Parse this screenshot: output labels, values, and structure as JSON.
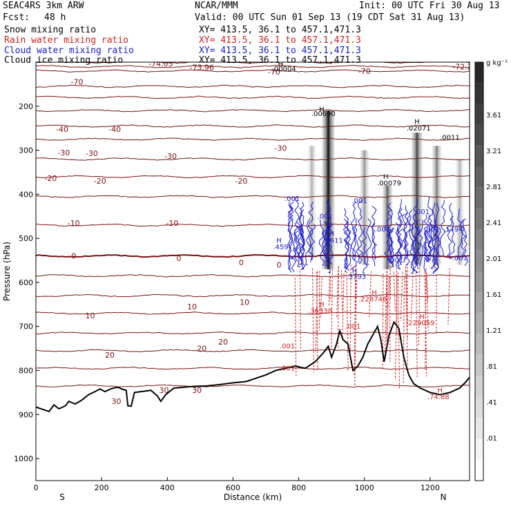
{
  "header": {
    "model": "SEAC4RS  3km ARW",
    "org": "NCAR/MMM",
    "init": "Init: 00 UTC Fri 30 Aug 13",
    "fcst_label": "Fcst:",
    "fcst_value": "48 h",
    "valid": "Valid: 00 UTC Sun 01 Sep 13 (19 CDT Sat 31 Aug 13)"
  },
  "fields": [
    {
      "name": "Snow mixing ratio",
      "xy": "XY= 413.5, 36.1 to 457.1,471.3",
      "color": "#000000"
    },
    {
      "name": "Rain water mixing ratio",
      "xy": "XY= 413.5, 36.1 to 457.1,471.3",
      "color": "#d11f1f"
    },
    {
      "name": "Cloud water mixing ratio",
      "xy": "XY= 413.5, 36.1 to 457.1,471.3",
      "color": "#1a1acc"
    },
    {
      "name": "Cloud ice mixing ratio",
      "xy": "XY= 413.5, 36.1 to 457.1,471.3",
      "color": "#000000"
    }
  ],
  "chart_data": {
    "type": "cross-section",
    "xlabel": "Distance (km)",
    "ylabel": "Pressure (hPa)",
    "xlim": [
      0,
      1320
    ],
    "ylim": [
      1050,
      100
    ],
    "x_ticks": [
      0,
      200,
      400,
      600,
      800,
      1000,
      1200
    ],
    "y_ticks": [
      200,
      300,
      400,
      500,
      600,
      700,
      800,
      900,
      1000
    ],
    "end_labels": {
      "left": "S",
      "right": "N"
    },
    "colorbar": {
      "unit": "g kg⁻¹",
      "labels": [
        "3.61",
        "3.21",
        "2.81",
        "2.41",
        "2.01",
        "1.61",
        "1.21",
        ".81",
        ".41",
        ".01"
      ]
    },
    "temperature_contours": [
      {
        "value": -72.25,
        "p": 100
      },
      {
        "value": -73.96,
        "p": 110
      },
      {
        "value": -70,
        "p": 120
      },
      {
        "value": -60,
        "p": 155
      },
      {
        "value": -50,
        "p": 180
      },
      {
        "value": -40,
        "p": 210
      },
      {
        "value": -30,
        "p": 245
      },
      {
        "value": -25,
        "p": 275
      },
      {
        "value": -20,
        "p": 320
      },
      {
        "value": -15,
        "p": 360
      },
      {
        "value": -10,
        "p": 405
      },
      {
        "value": -5,
        "p": 470
      },
      {
        "value": 0,
        "p": 540
      },
      {
        "value": 5,
        "p": 585
      },
      {
        "value": 10,
        "p": 630
      },
      {
        "value": 15,
        "p": 670
      },
      {
        "value": 20,
        "p": 715
      },
      {
        "value": 25,
        "p": 755
      },
      {
        "value": 30,
        "p": 795
      },
      {
        "value": 35,
        "p": 835
      }
    ],
    "temperature_labels": [
      {
        "text": "-70",
        "x": 125,
        "p": 145
      },
      {
        "text": "-74.03",
        "x": 380,
        "p": 103
      },
      {
        "text": "-73.96",
        "x": 505,
        "p": 112
      },
      {
        "text": "-70",
        "x": 725,
        "p": 122
      },
      {
        "text": "-70",
        "x": 1000,
        "p": 120
      },
      {
        "text": "-72.25",
        "x": 1305,
        "p": 110
      },
      {
        "text": "-40",
        "x": 80,
        "p": 252
      },
      {
        "text": "-40",
        "x": 240,
        "p": 252
      },
      {
        "text": "-30",
        "x": 85,
        "p": 305
      },
      {
        "text": "-30",
        "x": 170,
        "p": 307
      },
      {
        "text": "-30",
        "x": 410,
        "p": 313
      },
      {
        "text": "-30",
        "x": 745,
        "p": 295
      },
      {
        "text": "-20",
        "x": 45,
        "p": 363
      },
      {
        "text": "-20",
        "x": 195,
        "p": 370
      },
      {
        "text": "-20",
        "x": 625,
        "p": 370
      },
      {
        "text": "-10",
        "x": 115,
        "p": 465
      },
      {
        "text": "-10",
        "x": 415,
        "p": 465
      },
      {
        "text": "0",
        "x": 115,
        "p": 540
      },
      {
        "text": "0",
        "x": 435,
        "p": 545
      },
      {
        "text": "0",
        "x": 625,
        "p": 555
      },
      {
        "text": "0",
        "x": 740,
        "p": 560
      },
      {
        "text": "10",
        "x": 165,
        "p": 675
      },
      {
        "text": "10",
        "x": 475,
        "p": 655
      },
      {
        "text": "10",
        "x": 635,
        "p": 645
      },
      {
        "text": "20",
        "x": 225,
        "p": 765
      },
      {
        "text": "20",
        "x": 505,
        "p": 750
      },
      {
        "text": "20",
        "x": 570,
        "p": 735
      },
      {
        "text": "30",
        "x": 390,
        "p": 845
      },
      {
        "text": "30",
        "x": 490,
        "p": 845
      },
      {
        "text": "30",
        "x": 245,
        "p": 870
      }
    ],
    "field_labels": [
      {
        "text": "H",
        "x": 745,
        "p": 110,
        "color": "#000000"
      },
      {
        "text": ".00004",
        "x": 755,
        "p": 120,
        "color": "#000000"
      },
      {
        "text": "H",
        "x": 870,
        "p": 212,
        "color": "#000000"
      },
      {
        "text": ".00690",
        "x": 875,
        "p": 222,
        "color": "#000000"
      },
      {
        "text": "H",
        "x": 1160,
        "p": 240,
        "color": "#000000"
      },
      {
        "text": ".02071",
        "x": 1165,
        "p": 255,
        "color": "#000000"
      },
      {
        "text": ".0011",
        "x": 1260,
        "p": 276,
        "color": "#000000"
      },
      {
        "text": "H",
        "x": 1065,
        "p": 365,
        "color": "#000000"
      },
      {
        "text": ".00079",
        "x": 1075,
        "p": 380,
        "color": "#000000"
      },
      {
        "text": ".001",
        "x": 780,
        "p": 415,
        "color": "#1a1acc"
      },
      {
        "text": ".001",
        "x": 880,
        "p": 455,
        "color": "#1a1acc"
      },
      {
        "text": ".001",
        "x": 985,
        "p": 420,
        "color": "#1a1acc"
      },
      {
        "text": ".001",
        "x": 1175,
        "p": 445,
        "color": "#1a1acc"
      },
      {
        "text": ".001",
        "x": 1055,
        "p": 485,
        "color": "#1a1acc"
      },
      {
        "text": ".001",
        "x": 1205,
        "p": 485,
        "color": "#1a1acc"
      },
      {
        "text": ".1494",
        "x": 1270,
        "p": 485,
        "color": "#1a1acc"
      },
      {
        "text": "H",
        "x": 900,
        "p": 495,
        "color": "#1a1acc"
      },
      {
        "text": ".3611",
        "x": 905,
        "p": 510,
        "color": "#1a1acc"
      },
      {
        "text": "H",
        "x": 740,
        "p": 510,
        "color": "#1a1acc"
      },
      {
        "text": ".459",
        "x": 745,
        "p": 525,
        "color": "#1a1acc"
      },
      {
        "text": ".001",
        "x": 1095,
        "p": 555,
        "color": "#1a1acc"
      },
      {
        "text": ".001",
        "x": 1290,
        "p": 550,
        "color": "#1a1acc"
      },
      {
        "text": "H",
        "x": 970,
        "p": 580,
        "color": "#1a1acc"
      },
      {
        "text": ".3793",
        "x": 975,
        "p": 592,
        "color": "#1a1acc"
      },
      {
        "text": "H",
        "x": 1030,
        "p": 628,
        "color": "#d11f1f"
      },
      {
        "text": ".228748",
        "x": 1025,
        "p": 643,
        "color": "#d11f1f"
      },
      {
        "text": "H",
        "x": 870,
        "p": 655,
        "color": "#d11f1f"
      },
      {
        "text": ".36338",
        "x": 865,
        "p": 670,
        "color": "#d11f1f"
      },
      {
        "text": "H",
        "x": 1175,
        "p": 683,
        "color": "#d11f1f"
      },
      {
        "text": ".229059",
        "x": 1170,
        "p": 697,
        "color": "#d11f1f"
      },
      {
        "text": ".001",
        "x": 965,
        "p": 705,
        "color": "#d11f1f"
      },
      {
        "text": ".001",
        "x": 765,
        "p": 750,
        "color": "#d11f1f"
      },
      {
        "text": ".001",
        "x": 765,
        "p": 800,
        "color": "#d11f1f"
      },
      {
        "text": "H",
        "x": 1230,
        "p": 850,
        "color": "#d11f1f"
      },
      {
        "text": ".74.88",
        "x": 1225,
        "p": 865,
        "color": "#d11f1f"
      }
    ],
    "terrain": [
      [
        0,
        883
      ],
      [
        20,
        888
      ],
      [
        40,
        893
      ],
      [
        55,
        878
      ],
      [
        70,
        887
      ],
      [
        90,
        880
      ],
      [
        100,
        870
      ],
      [
        120,
        876
      ],
      [
        140,
        867
      ],
      [
        160,
        855
      ],
      [
        180,
        848
      ],
      [
        195,
        842
      ],
      [
        210,
        848
      ],
      [
        230,
        841
      ],
      [
        250,
        838
      ],
      [
        265,
        843
      ],
      [
        275,
        845
      ],
      [
        280,
        880
      ],
      [
        290,
        881
      ],
      [
        300,
        850
      ],
      [
        320,
        848
      ],
      [
        350,
        845
      ],
      [
        370,
        858
      ],
      [
        380,
        870
      ],
      [
        395,
        855
      ],
      [
        420,
        840
      ],
      [
        450,
        838
      ],
      [
        480,
        836
      ],
      [
        520,
        835
      ],
      [
        560,
        832
      ],
      [
        600,
        828
      ],
      [
        640,
        825
      ],
      [
        660,
        820
      ],
      [
        700,
        810
      ],
      [
        730,
        800
      ],
      [
        760,
        795
      ],
      [
        790,
        790
      ],
      [
        820,
        795
      ],
      [
        850,
        780
      ],
      [
        875,
        760
      ],
      [
        890,
        745
      ],
      [
        900,
        770
      ],
      [
        915,
        740
      ],
      [
        925,
        710
      ],
      [
        935,
        730
      ],
      [
        950,
        740
      ],
      [
        965,
        800
      ],
      [
        980,
        790
      ],
      [
        995,
        770
      ],
      [
        1010,
        740
      ],
      [
        1025,
        720
      ],
      [
        1040,
        700
      ],
      [
        1050,
        730
      ],
      [
        1060,
        780
      ],
      [
        1075,
        720
      ],
      [
        1090,
        690
      ],
      [
        1105,
        705
      ],
      [
        1120,
        770
      ],
      [
        1135,
        810
      ],
      [
        1150,
        830
      ],
      [
        1170,
        840
      ],
      [
        1200,
        850
      ],
      [
        1230,
        855
      ],
      [
        1260,
        850
      ],
      [
        1290,
        840
      ],
      [
        1310,
        825
      ],
      [
        1320,
        815
      ]
    ],
    "snow_columns": [
      {
        "x": 890,
        "p_top": 210,
        "p_bot": 570,
        "max": 3.61
      },
      {
        "x": 1070,
        "p_top": 380,
        "p_bot": 570,
        "max": 2.41
      },
      {
        "x": 1000,
        "p_top": 300,
        "p_bot": 560,
        "max": 1.61
      },
      {
        "x": 1160,
        "p_top": 260,
        "p_bot": 560,
        "max": 2.81
      },
      {
        "x": 1220,
        "p_top": 290,
        "p_bot": 560,
        "max": 2.01
      },
      {
        "x": 1290,
        "p_top": 320,
        "p_bot": 560,
        "max": 1.21
      },
      {
        "x": 840,
        "p_top": 290,
        "p_bot": 540,
        "max": 1.21
      }
    ]
  }
}
